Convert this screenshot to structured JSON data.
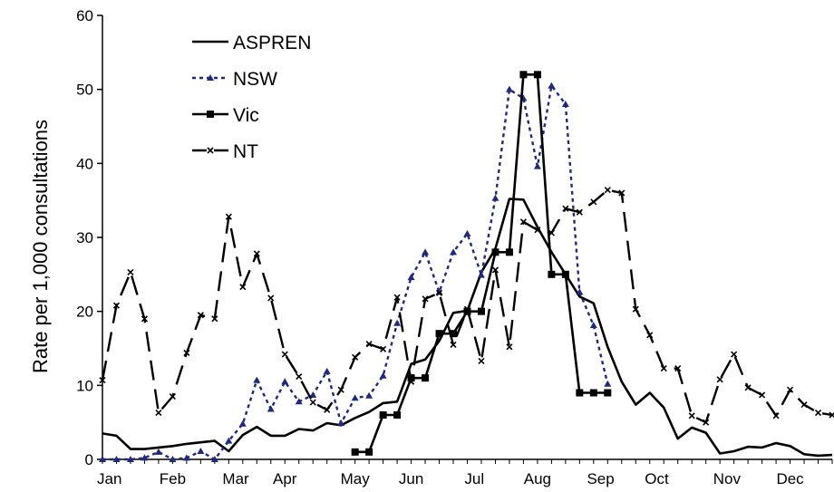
{
  "chart_data": {
    "type": "line",
    "title": "",
    "xlabel": "",
    "ylabel": "Rate per 1,000 consultations",
    "ylim": [
      0,
      60
    ],
    "yticks": [
      0,
      10,
      20,
      30,
      40,
      50,
      60
    ],
    "xlim": [
      1,
      53
    ],
    "months": [
      {
        "label": "Jan",
        "week": 1.5
      },
      {
        "label": "Feb",
        "week": 6
      },
      {
        "label": "Mar",
        "week": 10.5
      },
      {
        "label": "Apr",
        "week": 14
      },
      {
        "label": "May",
        "week": 19
      },
      {
        "label": "Jun",
        "week": 23
      },
      {
        "label": "Jul",
        "week": 27.5
      },
      {
        "label": "Aug",
        "week": 32
      },
      {
        "label": "Sep",
        "week": 36.5
      },
      {
        "label": "Oct",
        "week": 40.5
      },
      {
        "label": "Nov",
        "week": 45.5
      },
      {
        "label": "Dec",
        "week": 50
      }
    ],
    "grid": false,
    "legend_position": "top-left",
    "series": [
      {
        "name": "ASPREN",
        "style": "solid",
        "color": "#000000",
        "marker": "none",
        "x": [
          1,
          2,
          3,
          4,
          5,
          6,
          7,
          8,
          9,
          10,
          11,
          12,
          13,
          14,
          15,
          16,
          17,
          18,
          19,
          20,
          21,
          22,
          23,
          24,
          25,
          26,
          27,
          28,
          29,
          30,
          31,
          32,
          33,
          34,
          35,
          36,
          37,
          38,
          39,
          40,
          41,
          42,
          43,
          44,
          45,
          46,
          47,
          48,
          49,
          50,
          51,
          52,
          53
        ],
        "values": [
          3.5,
          3.2,
          1.4,
          1.4,
          1.6,
          1.8,
          2.1,
          2.3,
          2.5,
          1.1,
          3.3,
          4.4,
          3.2,
          3.2,
          4.1,
          3.9,
          4.9,
          4.6,
          5.6,
          6.4,
          7.6,
          7.8,
          12.9,
          13.5,
          16.0,
          19.8,
          20.1,
          25.3,
          28.5,
          35.2,
          35.1,
          31.4,
          28.0,
          25.0,
          22.0,
          21.1,
          15.2,
          10.5,
          7.4,
          9.0,
          7.0,
          2.8,
          4.3,
          3.6,
          0.8,
          1.1,
          1.7,
          1.6,
          2.2,
          1.8,
          0.7,
          0.5,
          0.6
        ]
      },
      {
        "name": "NSW",
        "style": "dotted",
        "color": "#1f2a7a",
        "marker": "triangle",
        "x": [
          1,
          2,
          3,
          4,
          5,
          6,
          7,
          8,
          9,
          10,
          11,
          12,
          13,
          14,
          15,
          16,
          17,
          18,
          19,
          20,
          21,
          22,
          23,
          24,
          25,
          26,
          27,
          28,
          29,
          30,
          31,
          32,
          33,
          34,
          35,
          36,
          37
        ],
        "values": [
          0,
          0,
          0,
          0.2,
          1.0,
          0,
          0.2,
          1.1,
          0,
          2.5,
          4.8,
          10.7,
          6.8,
          10.5,
          7.8,
          8.7,
          11.9,
          4.9,
          8.3,
          8.6,
          11.3,
          18.4,
          24.6,
          28.0,
          22.6,
          28.0,
          30.5,
          24.9,
          35.3,
          50.0,
          48.8,
          39.6,
          50.5,
          48.0,
          22.6,
          18.1,
          10.2
        ]
      },
      {
        "name": "Vic",
        "style": "solid",
        "color": "#000000",
        "marker": "square",
        "x": [
          19,
          20,
          21,
          22,
          23,
          24,
          25,
          26,
          27,
          28,
          29,
          30,
          31,
          32,
          33,
          34,
          35,
          36,
          37
        ],
        "values": [
          1,
          1,
          6,
          6,
          11,
          11,
          17,
          17,
          20,
          20,
          28,
          28,
          52,
          52,
          25,
          25,
          9,
          9,
          9
        ]
      },
      {
        "name": "NT",
        "style": "dashed",
        "color": "#000000",
        "marker": "x",
        "x": [
          1,
          2,
          3,
          4,
          5,
          6,
          7,
          8,
          9,
          10,
          11,
          12,
          13,
          14,
          15,
          16,
          17,
          18,
          19,
          20,
          21,
          22,
          23,
          24,
          25,
          26,
          27,
          28,
          29,
          30,
          31,
          32,
          33,
          34,
          35,
          36,
          37,
          38,
          39,
          40,
          41,
          42,
          43,
          44,
          45,
          46,
          47,
          48,
          49,
          50,
          51,
          52,
          53
        ],
        "values": [
          10.7,
          20.8,
          25.3,
          19.0,
          6.3,
          8.5,
          14.4,
          19.5,
          19.0,
          32.8,
          23.3,
          27.8,
          21.8,
          14.2,
          11.2,
          7.7,
          6.7,
          9.4,
          13.8,
          15.6,
          14.9,
          21.9,
          10.5,
          21.7,
          22.5,
          15.5,
          20.3,
          13.3,
          25.6,
          15.2,
          32.1,
          31.0,
          30.6,
          33.9,
          33.4,
          34.8,
          36.4,
          36.0,
          20.3,
          16.8,
          12.3,
          12.3,
          5.9,
          5.0,
          10.8,
          14.2,
          9.7,
          8.7,
          5.9,
          9.4,
          7.4,
          6.3,
          6.0
        ]
      }
    ]
  }
}
